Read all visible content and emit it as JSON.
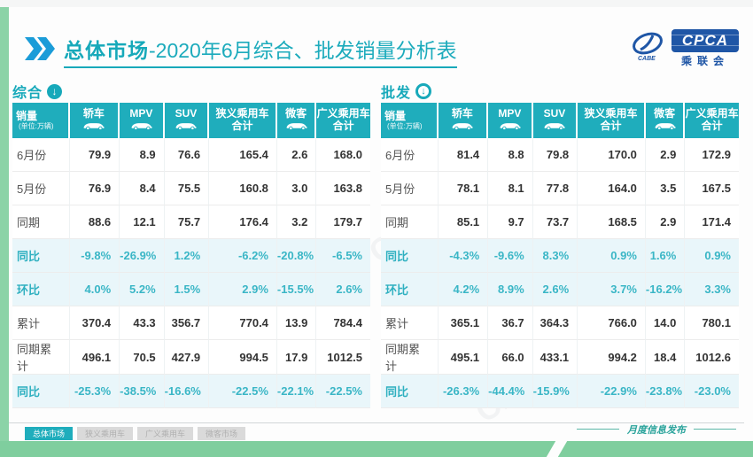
{
  "title": {
    "highlight": "总体市场",
    "rest": "-2020年6月综合、批发销量分析表"
  },
  "logo": {
    "name": "CPCA",
    "sub": "乘联会",
    "emblem": "CABE"
  },
  "icons": {
    "down_arrow": "↓"
  },
  "columns": [
    {
      "label": "销量",
      "sub": "(单位:万辆)",
      "icon": null
    },
    {
      "label": "轿车",
      "icon": "sedan-icon"
    },
    {
      "label": "MPV",
      "icon": "mpv-icon"
    },
    {
      "label": "SUV",
      "icon": "suv-icon"
    },
    {
      "label": "狭义乘用车",
      "label2": "合计",
      "icon": null
    },
    {
      "label": "微客",
      "icon": "microvan-icon"
    },
    {
      "label": "广义乘用车",
      "label2": "合计",
      "icon": null
    }
  ],
  "tables": [
    {
      "section": "综合",
      "rows": [
        {
          "label": "6月份",
          "kind": "normal",
          "values": [
            "79.9",
            "8.9",
            "76.6",
            "165.4",
            "2.6",
            "168.0"
          ]
        },
        {
          "label": "5月份",
          "kind": "normal",
          "values": [
            "76.9",
            "8.4",
            "75.5",
            "160.8",
            "3.0",
            "163.8"
          ]
        },
        {
          "label": "同期",
          "kind": "normal",
          "values": [
            "88.6",
            "12.1",
            "75.7",
            "176.4",
            "3.2",
            "179.7"
          ]
        },
        {
          "label": "同比",
          "kind": "percent",
          "values": [
            "-9.8%",
            "-26.9%",
            "1.2%",
            "-6.2%",
            "-20.8%",
            "-6.5%"
          ]
        },
        {
          "label": "环比",
          "kind": "percent",
          "values": [
            "4.0%",
            "5.2%",
            "1.5%",
            "2.9%",
            "-15.5%",
            "2.6%"
          ]
        },
        {
          "label": "累计",
          "kind": "normal",
          "values": [
            "370.4",
            "43.3",
            "356.7",
            "770.4",
            "13.9",
            "784.4"
          ]
        },
        {
          "label": "同期累计",
          "kind": "normal",
          "values": [
            "496.1",
            "70.5",
            "427.9",
            "994.5",
            "17.9",
            "1012.5"
          ]
        },
        {
          "label": "同比",
          "kind": "percent",
          "values": [
            "-25.3%",
            "-38.5%",
            "-16.6%",
            "-22.5%",
            "-22.1%",
            "-22.5%"
          ]
        }
      ]
    },
    {
      "section": "批发",
      "rows": [
        {
          "label": "6月份",
          "kind": "normal",
          "values": [
            "81.4",
            "8.8",
            "79.8",
            "170.0",
            "2.9",
            "172.9"
          ]
        },
        {
          "label": "5月份",
          "kind": "normal",
          "values": [
            "78.1",
            "8.1",
            "77.8",
            "164.0",
            "3.5",
            "167.5"
          ]
        },
        {
          "label": "同期",
          "kind": "normal",
          "values": [
            "85.1",
            "9.7",
            "73.7",
            "168.5",
            "2.9",
            "171.4"
          ]
        },
        {
          "label": "同比",
          "kind": "percent",
          "values": [
            "-4.3%",
            "-9.6%",
            "8.3%",
            "0.9%",
            "1.6%",
            "0.9%"
          ]
        },
        {
          "label": "环比",
          "kind": "percent",
          "values": [
            "4.2%",
            "8.9%",
            "2.6%",
            "3.7%",
            "-16.2%",
            "3.3%"
          ]
        },
        {
          "label": "累计",
          "kind": "normal",
          "values": [
            "365.1",
            "36.7",
            "364.3",
            "766.0",
            "14.0",
            "780.1"
          ]
        },
        {
          "label": "同期累计",
          "kind": "normal",
          "values": [
            "495.1",
            "66.0",
            "433.1",
            "994.2",
            "18.4",
            "1012.6"
          ]
        },
        {
          "label": "同比",
          "kind": "percent",
          "values": [
            "-26.3%",
            "-44.4%",
            "-15.9%",
            "-22.9%",
            "-23.8%",
            "-23.0%"
          ]
        }
      ]
    }
  ],
  "footer": {
    "tabs": [
      {
        "label": "总体市场",
        "active": true
      },
      {
        "label": "狭义乘用车",
        "active": false
      },
      {
        "label": "广义乘用车",
        "active": false
      },
      {
        "label": "微客市场",
        "active": false
      }
    ],
    "note": "月度信息发布"
  },
  "watermark": "CPCA乘联会",
  "colors": {
    "teal": "#1fadbc",
    "title": "#17a9ba",
    "percent": "#3ab6c6",
    "green_bar": "#7fce9e",
    "logo_blue": "#1f56a6",
    "stripe_green": "#8bd3a7"
  }
}
